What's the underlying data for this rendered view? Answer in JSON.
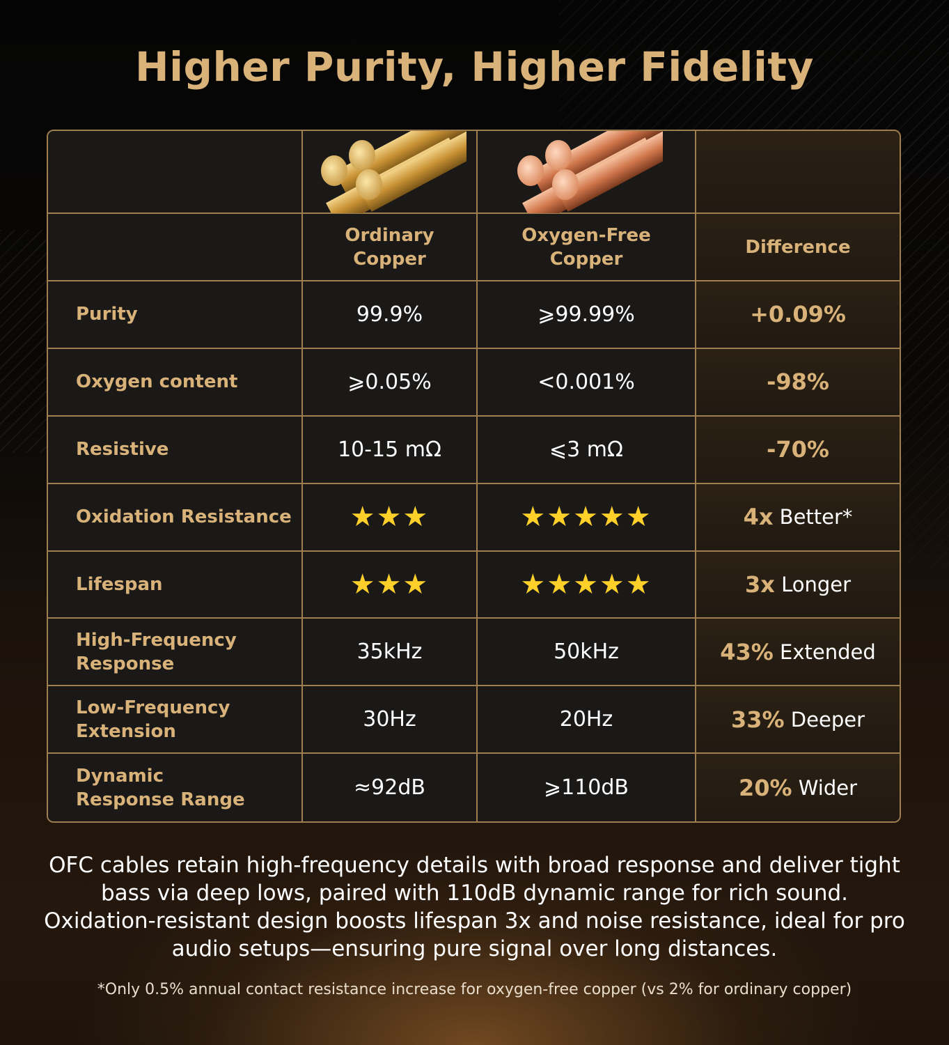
{
  "title": "Higher Purity, Higher Fidelity",
  "table": {
    "headers": {
      "col1": "Ordinary\nCopper",
      "col2": "Oxygen-Free\nCopper",
      "col3": "Difference"
    },
    "rows": [
      {
        "label": "Purity",
        "ordinary": "99.9%",
        "ofc": "⩾99.99%",
        "diff_num": "+0.09%",
        "diff_text": ""
      },
      {
        "label": "Oxygen content",
        "ordinary": "⩾0.05%",
        "ofc": "<0.001%",
        "diff_num": "-98%",
        "diff_text": ""
      },
      {
        "label": "Resistive",
        "ordinary": "10-15 mΩ",
        "ofc": "⩽3 mΩ",
        "diff_num": "-70%",
        "diff_text": ""
      },
      {
        "label": "Oxidation Resistance",
        "ordinary_stars": 3,
        "ofc_stars": 5,
        "ordinary": "★★★",
        "ofc": "★★★★★",
        "diff_num": "4x",
        "diff_text": " Better*"
      },
      {
        "label": "Lifespan",
        "ordinary_stars": 3,
        "ofc_stars": 5,
        "ordinary": "★★★",
        "ofc": "★★★★★",
        "diff_num": "3x",
        "diff_text": " Longer"
      },
      {
        "label": "High-Frequency\nResponse",
        "ordinary": "35kHz",
        "ofc": "50kHz",
        "diff_num": "43%",
        "diff_text": " Extended"
      },
      {
        "label": "Low-Frequency\nExtension",
        "ordinary": "30Hz",
        "ofc": "20Hz",
        "diff_num": "33%",
        "diff_text": " Deeper"
      },
      {
        "label": "Dynamic\nResponse Range",
        "ordinary": "≈92dB",
        "ofc": "⩾110dB",
        "diff_num": "20%",
        "diff_text": " Wider"
      }
    ]
  },
  "description": "OFC cables retain high-frequency details with broad response and deliver tight bass via deep lows, paired with 110dB dynamic range for rich sound. Oxidation-resistant design boosts lifespan 3x and noise resistance, ideal for pro audio setups—ensuring pure signal over long distances.",
  "footnote": "*Only 0.5% annual contact resistance increase for oxygen-free copper (vs 2% for ordinary copper)",
  "colors": {
    "gold_text": "#d9b27a",
    "border": "#9f7e50",
    "star": "#ffd02a",
    "ordinary_rod": "#d4a243",
    "ofc_rod": "#e08a62"
  },
  "icons": {
    "ordinary_rods": "brass-rods-image",
    "ofc_rods": "copper-rods-image",
    "star": "star-icon"
  }
}
